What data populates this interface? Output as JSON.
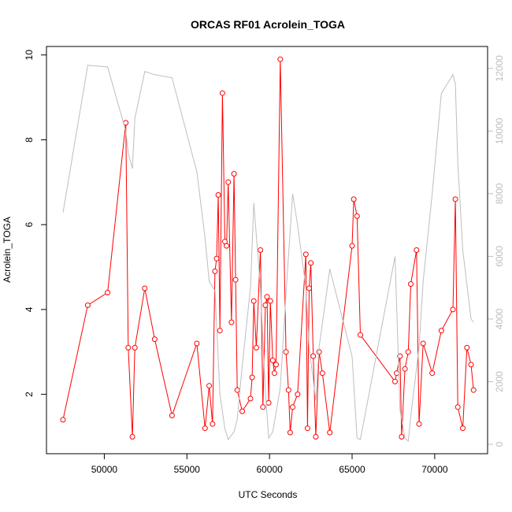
{
  "chart_data": {
    "type": "line",
    "title": "ORCAS RF01 Acrolein_TOGA",
    "xlabel": "UTC Seconds",
    "ylabel": "Acrolein_TOGA",
    "x_ticks": [
      "50000",
      "55000",
      "60000",
      "65000",
      "70000"
    ],
    "y_ticks": [
      "2",
      "4",
      "6",
      "8",
      "10"
    ],
    "y2_ticks": [
      "0",
      "2000",
      "4000",
      "6000",
      "8000",
      "10000",
      "12000"
    ],
    "xlim": [
      46500,
      73200
    ],
    "ylim": [
      0.6,
      10.2
    ],
    "y2lim": [
      -300,
      12700
    ],
    "grid": false,
    "colors": {
      "acrolein": "#ff0000",
      "altitude": "#bebebe",
      "axis": "#000000",
      "axis2": "#bebebe"
    },
    "series": [
      {
        "axis": "left",
        "marker": "circle",
        "x": [
          47500,
          49000,
          50200,
          51300,
          51450,
          51700,
          51850,
          52450,
          53050,
          54100,
          55600,
          56100,
          56350,
          56550,
          56700,
          56800,
          56900,
          57000,
          57150,
          57300,
          57400,
          57500,
          57700,
          57850,
          57950,
          58050,
          58350,
          58850,
          58950,
          59050,
          59200,
          59450,
          59600,
          59750,
          59850,
          59950,
          60050,
          60200,
          60300,
          60400,
          60650,
          61000,
          61150,
          61250,
          61400,
          61700,
          62200,
          62300,
          62400,
          62500,
          62650,
          62800,
          63000,
          63200,
          63650,
          65000,
          65100,
          65300,
          65500,
          67600,
          67700,
          67900,
          68000,
          68200,
          68400,
          68550,
          68900,
          69050,
          69300,
          69850,
          70400,
          71100,
          71250,
          71400,
          71700,
          71950,
          72200,
          72350
        ],
        "y": [
          1.4,
          4.1,
          4.4,
          8.4,
          3.1,
          1.0,
          3.1,
          4.5,
          3.3,
          1.5,
          3.2,
          1.2,
          2.2,
          1.3,
          4.9,
          5.2,
          6.7,
          3.5,
          9.1,
          5.6,
          5.5,
          7.0,
          3.7,
          7.2,
          4.7,
          2.1,
          1.6,
          1.9,
          2.4,
          4.2,
          3.1,
          5.4,
          1.7,
          4.1,
          4.3,
          1.8,
          4.2,
          2.8,
          2.5,
          2.7,
          9.9,
          3.0,
          2.1,
          1.1,
          1.7,
          2.0,
          5.3,
          1.2,
          4.5,
          5.1,
          2.9,
          1.0,
          3.0,
          2.5,
          1.1,
          5.5,
          6.6,
          6.2,
          3.4,
          2.3,
          2.5,
          2.9,
          1.0,
          2.6,
          3.0,
          4.6,
          5.4,
          1.3,
          3.2,
          2.5,
          3.5,
          4.0,
          6.6,
          1.7,
          1.2,
          3.1,
          2.7,
          2.1
        ]
      },
      {
        "axis": "right",
        "marker": "none",
        "x": [
          47500,
          49000,
          50200,
          51300,
          51450,
          51700,
          51850,
          52450,
          53050,
          54100,
          55600,
          56100,
          56350,
          56700,
          57000,
          57300,
          57500,
          57850,
          58050,
          58350,
          58850,
          59050,
          59450,
          59750,
          59950,
          60200,
          60650,
          61000,
          61400,
          61700,
          62200,
          62400,
          62800,
          63000,
          63650,
          65000,
          65300,
          65500,
          67600,
          67900,
          68200,
          68400,
          68550,
          69050,
          69300,
          69850,
          70400,
          71100,
          71250,
          71400,
          71700,
          72200,
          72350
        ],
        "y": [
          7400,
          12100,
          12050,
          10000,
          9300,
          8800,
          10400,
          11900,
          11800,
          11700,
          8700,
          6600,
          5200,
          4900,
          1600,
          500,
          150,
          400,
          800,
          2500,
          5000,
          7700,
          5000,
          1700,
          200,
          400,
          1800,
          4800,
          8000,
          7000,
          5000,
          3100,
          1400,
          3100,
          5600,
          2800,
          200,
          150,
          6000,
          1100,
          200,
          100,
          900,
          3100,
          5200,
          8000,
          11200,
          11800,
          11500,
          9000,
          6200,
          4000,
          3900
        ]
      }
    ]
  }
}
